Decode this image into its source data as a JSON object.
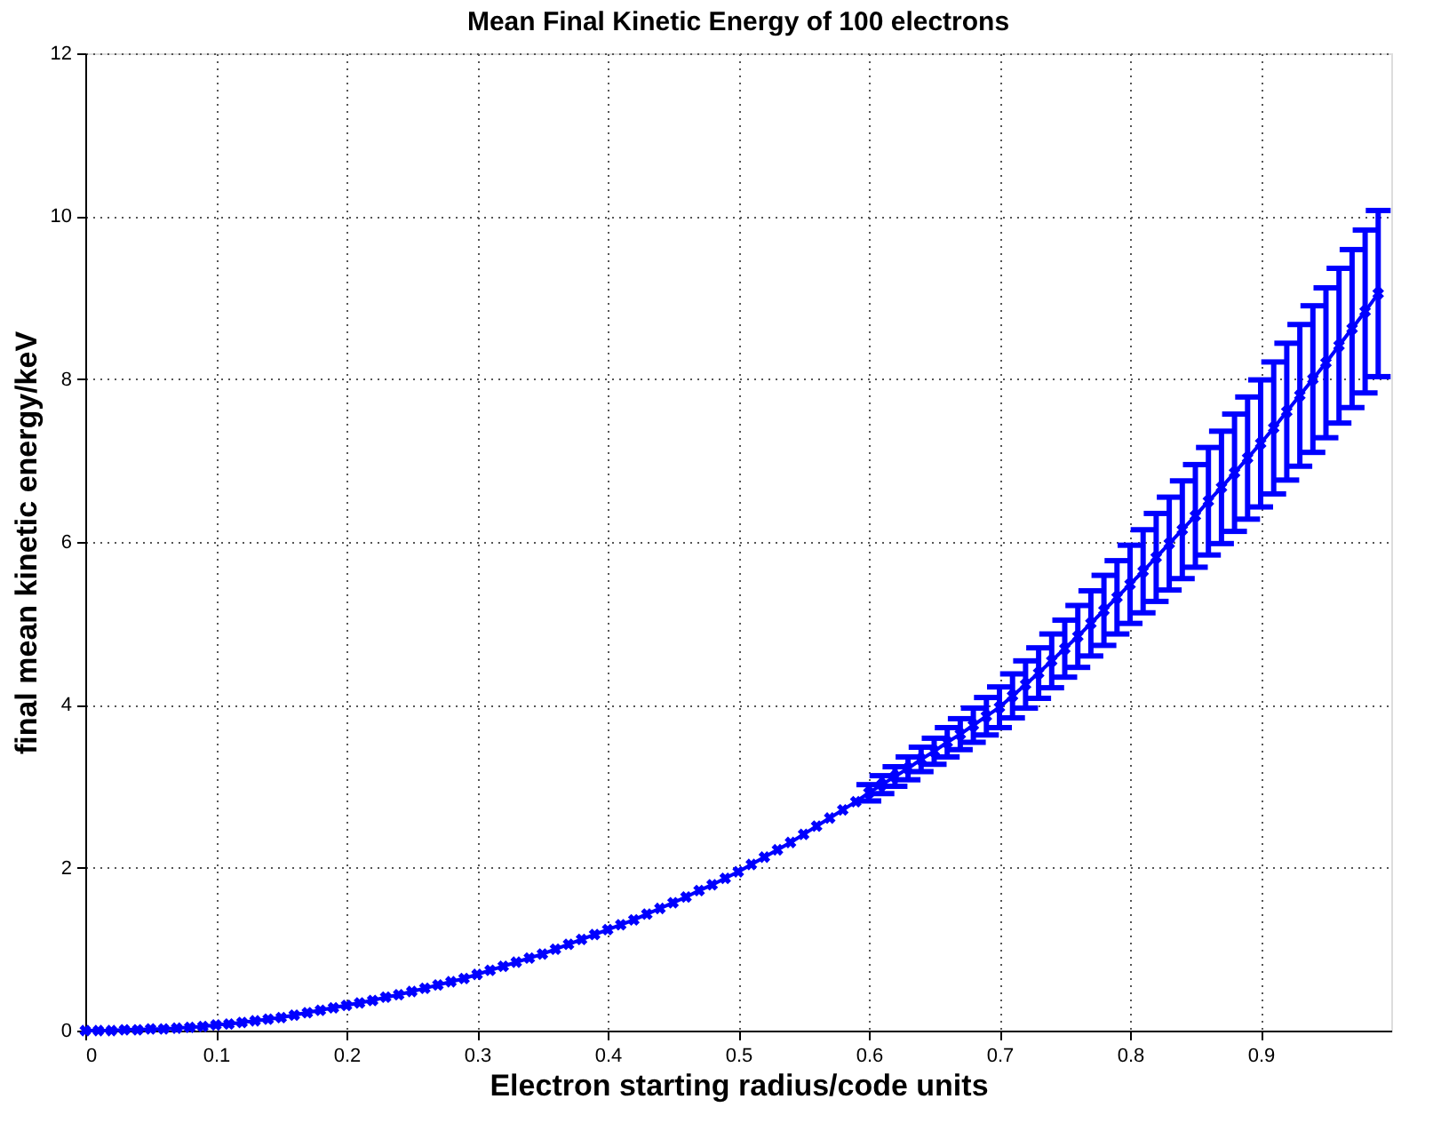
{
  "chart_data": {
    "type": "line",
    "title": "Mean Final Kinetic Energy of 100 electrons",
    "xlabel": "Electron starting radius/code units",
    "ylabel": "final mean kinetic energy/keV",
    "x": [
      0,
      0.01,
      0.02,
      0.03,
      0.04,
      0.05,
      0.06,
      0.07,
      0.08,
      0.09,
      0.1,
      0.11,
      0.12,
      0.13,
      0.14,
      0.15,
      0.16,
      0.17,
      0.18,
      0.19,
      0.2,
      0.21,
      0.22,
      0.23,
      0.24,
      0.25,
      0.26,
      0.27,
      0.28,
      0.29,
      0.3,
      0.31,
      0.32,
      0.33,
      0.34,
      0.35,
      0.36,
      0.37,
      0.38,
      0.39,
      0.4,
      0.41,
      0.42,
      0.43,
      0.44,
      0.45,
      0.46,
      0.47,
      0.48,
      0.49,
      0.5,
      0.51,
      0.52,
      0.53,
      0.54,
      0.55,
      0.56,
      0.57,
      0.58,
      0.59,
      0.6,
      0.61,
      0.62,
      0.63,
      0.64,
      0.65,
      0.66,
      0.67,
      0.68,
      0.69,
      0.7,
      0.71,
      0.72,
      0.73,
      0.74,
      0.75,
      0.76,
      0.77,
      0.78,
      0.79,
      0.8,
      0.81,
      0.82,
      0.83,
      0.84,
      0.85,
      0.86,
      0.87,
      0.88,
      0.89,
      0.9,
      0.91,
      0.92,
      0.93,
      0.94,
      0.95,
      0.96,
      0.97,
      0.98,
      0.99
    ],
    "color": "#0000ff",
    "values": [
      0,
      0,
      0,
      0.01,
      0.01,
      0.02,
      0.02,
      0.03,
      0.04,
      0.05,
      0.07,
      0.08,
      0.1,
      0.12,
      0.14,
      0.16,
      0.19,
      0.22,
      0.25,
      0.28,
      0.31,
      0.34,
      0.37,
      0.41,
      0.44,
      0.48,
      0.52,
      0.56,
      0.6,
      0.64,
      0.69,
      0.74,
      0.79,
      0.84,
      0.89,
      0.94,
      1.0,
      1.06,
      1.12,
      1.18,
      1.24,
      1.3,
      1.36,
      1.43,
      1.5,
      1.57,
      1.64,
      1.72,
      1.79,
      1.87,
      1.95,
      2.04,
      2.13,
      2.22,
      2.31,
      2.41,
      2.51,
      2.61,
      2.71,
      2.81,
      2.92,
      3.02,
      3.12,
      3.22,
      3.33,
      3.43,
      3.54,
      3.64,
      3.75,
      3.86,
      3.97,
      4.11,
      4.25,
      4.39,
      4.54,
      4.69,
      4.84,
      5.0,
      5.16,
      5.32,
      5.48,
      5.64,
      5.81,
      5.98,
      6.15,
      6.32,
      6.5,
      6.67,
      6.85,
      7.03,
      7.21,
      7.4,
      7.6,
      7.8,
      8.0,
      8.2,
      8.41,
      8.62,
      8.83,
      9.05
    ],
    "errors": [
      null,
      null,
      null,
      null,
      null,
      null,
      null,
      null,
      null,
      null,
      null,
      null,
      null,
      null,
      null,
      null,
      null,
      null,
      null,
      null,
      null,
      null,
      null,
      null,
      null,
      null,
      null,
      null,
      null,
      null,
      null,
      null,
      null,
      null,
      null,
      null,
      null,
      null,
      null,
      null,
      null,
      null,
      null,
      null,
      null,
      null,
      null,
      null,
      null,
      null,
      null,
      null,
      null,
      null,
      null,
      null,
      null,
      null,
      null,
      null,
      0.1,
      0.11,
      0.12,
      0.14,
      0.15,
      0.16,
      0.18,
      0.19,
      0.21,
      0.23,
      0.25,
      0.27,
      0.29,
      0.31,
      0.33,
      0.35,
      0.38,
      0.4,
      0.43,
      0.45,
      0.48,
      0.51,
      0.54,
      0.57,
      0.6,
      0.63,
      0.66,
      0.69,
      0.72,
      0.75,
      0.78,
      0.81,
      0.84,
      0.87,
      0.9,
      0.92,
      0.95,
      0.97,
      1.0,
      1.02
    ],
    "xlim": [
      0,
      1
    ],
    "xticks": [
      0,
      0.1,
      0.2,
      0.3,
      0.4,
      0.5,
      0.6,
      0.7,
      0.8,
      0.9
    ],
    "ylim": [
      0,
      12
    ],
    "yticks": [
      0,
      2,
      4,
      6,
      8,
      10,
      12
    ],
    "grid": true,
    "marker": "cross",
    "line_style": "solid"
  }
}
